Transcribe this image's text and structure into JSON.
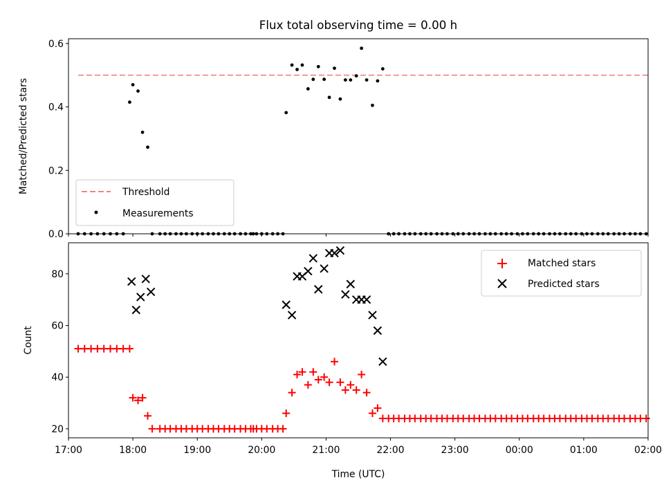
{
  "title": "Flux total observing time = 0.00 h",
  "chart_data": [
    {
      "type": "scatter",
      "ylabel": "Matched/Predicted stars",
      "xlim": [
        17.0,
        2.0
      ],
      "ylim": [
        0.0,
        0.615
      ],
      "yticks": [
        0.0,
        0.2,
        0.4,
        0.6
      ],
      "grid": false,
      "legend_position": "lower-left",
      "threshold": {
        "name": "Threshold",
        "value": 0.5,
        "x_range": [
          17.15,
          26.0
        ],
        "color": "#f08080"
      },
      "series": [
        {
          "name": "Measurements",
          "color": "#000000",
          "x": [
            17.15,
            17.25,
            17.35,
            17.45,
            17.55,
            17.65,
            17.75,
            17.85,
            17.95,
            18.0,
            18.08,
            18.15,
            18.23,
            18.3,
            18.42,
            18.5,
            18.58,
            18.67,
            18.75,
            18.83,
            18.92,
            19.0,
            19.08,
            19.17,
            19.25,
            19.33,
            19.42,
            19.5,
            19.58,
            19.67,
            19.75,
            19.83,
            19.87,
            19.92,
            20.0,
            20.08,
            20.17,
            20.25,
            20.33,
            20.38,
            20.47,
            20.55,
            20.63,
            20.72,
            20.8,
            20.88,
            20.97,
            21.05,
            21.13,
            21.22,
            21.3,
            21.38,
            21.47,
            21.55,
            21.63,
            21.72,
            21.8,
            21.88,
            21.97,
            22.05,
            22.13,
            22.22,
            22.3,
            22.38,
            22.47,
            22.55,
            22.63,
            22.72,
            22.8,
            22.88,
            22.97,
            23.05,
            23.13,
            23.22,
            23.3,
            23.38,
            23.47,
            23.55,
            23.63,
            23.72,
            23.8,
            23.88,
            23.97,
            24.05,
            24.13,
            24.22,
            24.3,
            24.38,
            24.47,
            24.55,
            24.63,
            24.72,
            24.8,
            24.88,
            24.97,
            25.05,
            25.13,
            25.22,
            25.3,
            25.38,
            25.47,
            25.55,
            25.63,
            25.72,
            25.8,
            25.88,
            25.97
          ],
          "y": [
            0,
            0,
            0,
            0,
            0,
            0,
            0,
            0,
            0.415,
            0.47,
            0.45,
            0.32,
            0.273,
            0,
            0,
            0,
            0,
            0,
            0,
            0,
            0,
            0,
            0,
            0,
            0,
            0,
            0,
            0,
            0,
            0,
            0,
            0,
            0,
            0,
            0,
            0,
            0,
            0,
            0,
            0.382,
            0.532,
            0.518,
            0.532,
            0.457,
            0.487,
            0.527,
            0.487,
            0.43,
            0.522,
            0.425,
            0.485,
            0.485,
            0.498,
            0.585,
            0.485,
            0.405,
            0.482,
            0.52,
            0,
            0,
            0,
            0,
            0,
            0,
            0,
            0,
            0,
            0,
            0,
            0,
            0,
            0,
            0,
            0,
            0,
            0,
            0,
            0,
            0,
            0,
            0,
            0,
            0,
            0,
            0,
            0,
            0,
            0,
            0,
            0,
            0,
            0,
            0,
            0,
            0,
            0,
            0,
            0,
            0,
            0,
            0,
            0,
            0,
            0,
            0,
            0,
            0
          ]
        }
      ]
    },
    {
      "type": "scatter",
      "xlabel": "Time (UTC)",
      "ylabel": "Count",
      "xlim": [
        17.0,
        2.0
      ],
      "ylim": [
        16.5,
        92.0
      ],
      "xtick_labels": [
        "17:00",
        "18:00",
        "19:00",
        "20:00",
        "21:00",
        "22:00",
        "23:00",
        "00:00",
        "01:00",
        "02:00"
      ],
      "yticks": [
        20,
        40,
        60,
        80
      ],
      "grid": false,
      "legend_position": "upper-right",
      "series": [
        {
          "name": "Matched stars",
          "marker": "+",
          "color": "#ff0000",
          "x": [
            17.15,
            17.25,
            17.35,
            17.45,
            17.55,
            17.65,
            17.75,
            17.85,
            17.95,
            18.0,
            18.08,
            18.15,
            18.23,
            18.3,
            18.42,
            18.5,
            18.58,
            18.67,
            18.75,
            18.83,
            18.92,
            19.0,
            19.08,
            19.17,
            19.25,
            19.33,
            19.42,
            19.5,
            19.58,
            19.67,
            19.75,
            19.83,
            19.87,
            19.92,
            20.0,
            20.08,
            20.17,
            20.25,
            20.33,
            20.38,
            20.47,
            20.55,
            20.63,
            20.72,
            20.8,
            20.88,
            20.97,
            21.05,
            21.13,
            21.22,
            21.3,
            21.38,
            21.47,
            21.55,
            21.63,
            21.72,
            21.8,
            21.88,
            21.97,
            22.05,
            22.13,
            22.22,
            22.3,
            22.38,
            22.47,
            22.55,
            22.63,
            22.72,
            22.8,
            22.88,
            22.97,
            23.05,
            23.13,
            23.22,
            23.3,
            23.38,
            23.47,
            23.55,
            23.63,
            23.72,
            23.8,
            23.88,
            23.97,
            24.05,
            24.13,
            24.22,
            24.3,
            24.38,
            24.47,
            24.55,
            24.63,
            24.72,
            24.8,
            24.88,
            24.97,
            25.05,
            25.13,
            25.22,
            25.3,
            25.38,
            25.47,
            25.55,
            25.63,
            25.72,
            25.8,
            25.88,
            25.97
          ],
          "y": [
            51,
            51,
            51,
            51,
            51,
            51,
            51,
            51,
            51,
            32,
            31,
            32,
            25,
            20,
            20,
            20,
            20,
            20,
            20,
            20,
            20,
            20,
            20,
            20,
            20,
            20,
            20,
            20,
            20,
            20,
            20,
            20,
            20,
            20,
            20,
            20,
            20,
            20,
            20,
            26,
            34,
            41,
            42,
            37,
            42,
            39,
            40,
            38,
            46,
            38,
            35,
            37,
            35,
            41,
            34,
            26,
            28,
            24,
            24,
            24,
            24,
            24,
            24,
            24,
            24,
            24,
            24,
            24,
            24,
            24,
            24,
            24,
            24,
            24,
            24,
            24,
            24,
            24,
            24,
            24,
            24,
            24,
            24,
            24,
            24,
            24,
            24,
            24,
            24,
            24,
            24,
            24,
            24,
            24,
            24,
            24,
            24,
            24,
            24,
            24,
            24,
            24,
            24,
            24,
            24,
            24,
            24
          ]
        },
        {
          "name": "Predicted stars",
          "marker": "x",
          "color": "#000000",
          "x": [
            17.98,
            18.05,
            18.12,
            18.2,
            18.28,
            20.38,
            20.47,
            20.55,
            20.63,
            20.72,
            20.8,
            20.88,
            20.97,
            21.05,
            21.13,
            21.22,
            21.3,
            21.38,
            21.47,
            21.55,
            21.63,
            21.72,
            21.8,
            21.88
          ],
          "y": [
            77,
            66,
            71,
            78,
            73,
            68,
            64,
            79,
            79,
            81,
            86,
            74,
            82,
            88,
            88,
            89,
            72,
            76,
            70,
            70,
            70,
            64,
            58,
            46
          ]
        }
      ]
    }
  ]
}
